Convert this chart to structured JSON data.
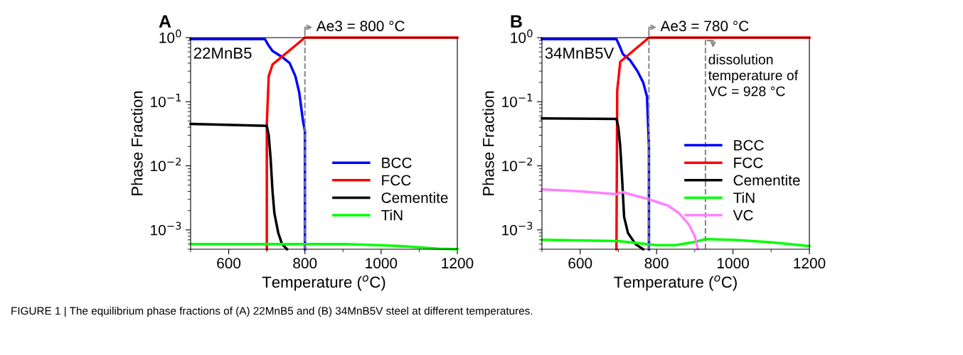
{
  "chart_data": [
    {
      "type": "line",
      "title": "A",
      "xlabel": "Temperature ($^{o}$C)",
      "ylabel": "Phase Fraction",
      "log": "y",
      "xlim": [
        500,
        1200
      ],
      "xticks": [
        600,
        800,
        1000,
        1200
      ],
      "ylim": [
        0.0005,
        1
      ],
      "yticks": [
        {
          "value": 0.001,
          "label": "10$^{−3}$"
        },
        {
          "value": 0.01,
          "label": "10$^{−2}$"
        },
        {
          "value": 0.1,
          "label": "10$^{−1}$"
        },
        {
          "value": 1,
          "label": "10$^{0}$"
        }
      ],
      "legend": "bottom right",
      "grid": false,
      "line_style": "solid",
      "marker": "none",
      "ref_lines": [
        {
          "axis": "x",
          "value": 800,
          "label": "Ae3 = 800 °C",
          "color": "#888888",
          "line_style": "dashed"
        }
      ],
      "annotations": [
        "22MnB5"
      ],
      "series": [
        {
          "name": "BCC",
          "color": "#0000ff",
          "x": [
            500,
            695,
            705,
            715,
            740,
            760,
            775,
            785,
            795,
            800,
            800
          ],
          "values": [
            0.95,
            0.95,
            0.75,
            0.62,
            0.5,
            0.4,
            0.25,
            0.14,
            0.05,
            0.035,
            0.0005
          ]
        },
        {
          "name": "FCC",
          "color": "#ff0000",
          "x": [
            700,
            700,
            705,
            715,
            800,
            1200
          ],
          "values": [
            0.0005,
            0.045,
            0.25,
            0.38,
            1.0,
            1.0
          ]
        },
        {
          "name": "Cementite",
          "color": "#000000",
          "x": [
            500,
            700,
            705,
            710,
            715,
            720,
            730,
            740,
            753
          ],
          "values": [
            0.045,
            0.042,
            0.03,
            0.013,
            0.004,
            0.0018,
            0.0009,
            0.0006,
            0.0005
          ]
        },
        {
          "name": "TiN",
          "color": "#00ff00",
          "x": [
            500,
            900,
            950,
            1050,
            1150,
            1200
          ],
          "values": [
            0.0006,
            0.0006,
            0.00059,
            0.00056,
            0.00051,
            0.0005
          ]
        }
      ]
    },
    {
      "type": "line",
      "title": "B",
      "xlabel": "Temperature ($^{o}$C)",
      "ylabel": "Phase Fraction",
      "log": "y",
      "xlim": [
        500,
        1200
      ],
      "xticks": [
        600,
        800,
        1000,
        1200
      ],
      "ylim": [
        0.0005,
        1
      ],
      "yticks": [
        {
          "value": 0.001,
          "label": "10$^{−3}$"
        },
        {
          "value": 0.01,
          "label": "10$^{−2}$"
        },
        {
          "value": 0.1,
          "label": "10$^{−1}$"
        },
        {
          "value": 1,
          "label": "10$^{0}$"
        }
      ],
      "legend": "bottom right",
      "grid": false,
      "line_style": "solid",
      "marker": "none",
      "ref_lines": [
        {
          "axis": "x",
          "value": 780,
          "label": "Ae3 = 780 °C",
          "color": "#888888",
          "line_style": "dashed"
        },
        {
          "axis": "x",
          "value": 928,
          "label": "dissolution\ntemperature of\nVC = 928 °C",
          "color": "#888888",
          "line_style": "dashed"
        }
      ],
      "annotations": [
        "34MnB5V",
        "FIGURE 1 | The equilibrium phase fractions of (A) 22MnB5 and (B) 34MnB5V steel at different temperatures."
      ],
      "series": [
        {
          "name": "BCC",
          "color": "#0000ff",
          "x": [
            500,
            695,
            705,
            712,
            730,
            750,
            765,
            775,
            780,
            780
          ],
          "values": [
            0.95,
            0.95,
            0.7,
            0.55,
            0.45,
            0.3,
            0.2,
            0.12,
            0.02,
            0.0005
          ]
        },
        {
          "name": "FCC",
          "color": "#ff0000",
          "x": [
            695,
            697,
            705,
            780,
            1200
          ],
          "values": [
            0.0005,
            0.15,
            0.42,
            1.0,
            1.0
          ]
        },
        {
          "name": "Cementite",
          "color": "#000000",
          "x": [
            500,
            695,
            700,
            705,
            710,
            715,
            725,
            745,
            765
          ],
          "values": [
            0.055,
            0.054,
            0.04,
            0.02,
            0.006,
            0.0016,
            0.0009,
            0.0006,
            0.0005
          ]
        },
        {
          "name": "TiN",
          "color": "#00ff00",
          "x": [
            500,
            700,
            800,
            850,
            900,
            928,
            1000,
            1100,
            1200
          ],
          "values": [
            0.0007,
            0.00067,
            0.00058,
            0.00058,
            0.00065,
            0.00072,
            0.0007,
            0.00064,
            0.00056
          ]
        },
        {
          "name": "VC",
          "color": "#ff80ff",
          "x": [
            500,
            600,
            695,
            710,
            780,
            830,
            860,
            885,
            900,
            908
          ],
          "values": [
            0.0043,
            0.004,
            0.0036,
            0.0039,
            0.003,
            0.0024,
            0.0018,
            0.0012,
            0.0008,
            0.0005
          ]
        }
      ]
    }
  ]
}
